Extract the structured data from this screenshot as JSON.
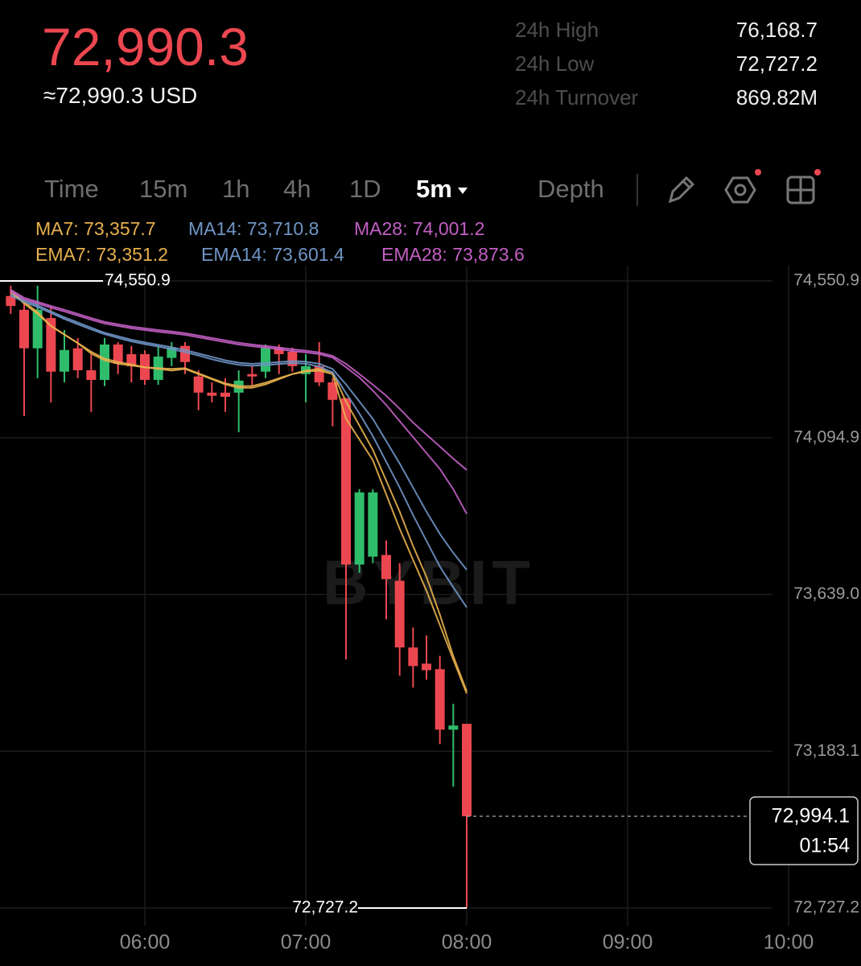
{
  "header": {
    "price": "72,990.3",
    "price_usd": "≈72,990.3 USD",
    "stats": [
      {
        "label": "24h High",
        "value": "76,168.7"
      },
      {
        "label": "24h Low",
        "value": "72,727.2"
      },
      {
        "label": "24h Turnover",
        "value": "869.82M"
      }
    ]
  },
  "toolbar": {
    "tabs": [
      "Time",
      "15m",
      "1h",
      "4h",
      "1D",
      "5m",
      "Depth"
    ],
    "active_tab": "5m"
  },
  "chart_data": {
    "type": "candlestick",
    "watermark": "BYBIT",
    "x": [
      "05:10",
      "05:15",
      "05:20",
      "05:25",
      "05:30",
      "05:35",
      "05:40",
      "05:45",
      "05:50",
      "05:55",
      "06:00",
      "06:05",
      "06:10",
      "06:15",
      "06:20",
      "06:25",
      "06:30",
      "06:35",
      "06:40",
      "06:45",
      "06:50",
      "06:55",
      "07:00",
      "07:05",
      "07:10",
      "07:15",
      "07:20",
      "07:25",
      "07:30",
      "07:35",
      "07:40",
      "07:45",
      "07:50",
      "07:55",
      "08:00"
    ],
    "open": [
      74507,
      74467,
      74355,
      74443,
      74287,
      74355,
      74291,
      74263,
      74366,
      74338,
      74338,
      74263,
      74327,
      74362,
      74273,
      74226,
      74226,
      74226,
      74280,
      74287,
      74357,
      74345,
      74280,
      74303,
      74256,
      74210,
      73726,
      73749,
      73754,
      73679,
      73485,
      73438,
      73422,
      73246,
      73263
    ],
    "high": [
      74537,
      74490,
      74537,
      74478,
      74408,
      74385,
      74338,
      74385,
      74373,
      74362,
      74349,
      74362,
      74373,
      74373,
      74291,
      74256,
      74268,
      74291,
      74303,
      74366,
      74366,
      74357,
      74338,
      74373,
      74268,
      74210,
      73945,
      73945,
      73796,
      73730,
      73543,
      73520,
      73461,
      73321,
      73263
    ],
    "low": [
      74455,
      74158,
      74268,
      74198,
      74256,
      74268,
      74170,
      74245,
      74280,
      74256,
      74249,
      74249,
      74303,
      74280,
      74175,
      74198,
      74170,
      74111,
      74245,
      74268,
      74280,
      74287,
      74198,
      74245,
      74128,
      73450,
      73702,
      73730,
      73567,
      73403,
      73368,
      73391,
      73204,
      73080,
      72727.2
    ],
    "close": [
      74478,
      74355,
      74467,
      74287,
      74350,
      74291,
      74263,
      74366,
      74310,
      74303,
      74263,
      74331,
      74357,
      74315,
      74226,
      74217,
      74214,
      74261,
      74273,
      74357,
      74338,
      74303,
      74303,
      74256,
      74205,
      73726,
      73936,
      73936,
      73684,
      73485,
      73431,
      73419,
      73246,
      73258,
      72994.1
    ],
    "up_color": "#2fbd6b",
    "down_color": "#ec4750",
    "series": [
      {
        "name": "MA7: 73,357.7",
        "color": "#e7b04d",
        "values": [
          74525,
          74490,
          74460,
          74420,
          74395,
          74370,
          74340,
          74320,
          74310,
          74305,
          74300,
          74295,
          74290,
          74295,
          74280,
          74265,
          74250,
          74240,
          74240,
          74250,
          74265,
          74280,
          74290,
          74295,
          74285,
          74200,
          74130,
          74060,
          73970,
          73880,
          73780,
          73690,
          73580,
          73460,
          73357.7
        ]
      },
      {
        "name": "MA14: 73,710.8",
        "color": "#6f95c6",
        "values": [
          74513,
          74495,
          74480,
          74462,
          74445,
          74430,
          74415,
          74400,
          74390,
          74380,
          74372,
          74365,
          74358,
          74350,
          74340,
          74330,
          74320,
          74313,
          74310,
          74312,
          74315,
          74318,
          74316,
          74310,
          74295,
          74250,
          74200,
          74150,
          74085,
          74020,
          73950,
          73880,
          73815,
          73760,
          73710.8
        ]
      },
      {
        "name": "MA28: 74,001.2",
        "color": "#c25fc4",
        "values": [
          74525,
          74502,
          74490,
          74478,
          74467,
          74455,
          74443,
          74432,
          74425,
          74418,
          74413,
          74408,
          74404,
          74399,
          74392,
          74385,
          74378,
          74371,
          74366,
          74362,
          74357,
          74352,
          74348,
          74343,
          74333,
          74310,
          74280,
          74249,
          74217,
          74179,
          74139,
          74104,
          74069,
          74034,
          74001.2
        ]
      },
      {
        "name": "EMA7: 73,351.2",
        "color": "#e7b04d",
        "values": [
          74520,
          74485,
          74455,
          74420,
          74395,
          74370,
          74345,
          74325,
          74315,
          74308,
          74300,
          74297,
          74295,
          74297,
          74282,
          74267,
          74253,
          74245,
          74245,
          74255,
          74268,
          74280,
          74287,
          74290,
          74280,
          74150,
          74090,
          74030,
          73930,
          73830,
          73740,
          73650,
          73550,
          73450,
          73351.2
        ]
      },
      {
        "name": "EMA14: 73,601.4",
        "color": "#6f95c6",
        "values": [
          74508,
          74490,
          74475,
          74458,
          74440,
          74425,
          74410,
          74396,
          74385,
          74375,
          74367,
          74360,
          74352,
          74344,
          74334,
          74323,
          74314,
          74307,
          74304,
          74306,
          74309,
          74312,
          74310,
          74302,
          74285,
          74225,
          74165,
          74100,
          74025,
          73950,
          73870,
          73795,
          73720,
          73660,
          73601.4
        ]
      },
      {
        "name": "EMA28: 73,873.6",
        "color": "#c25fc4",
        "values": [
          74520,
          74497,
          74485,
          74473,
          74462,
          74450,
          74438,
          74427,
          74420,
          74413,
          74408,
          74403,
          74399,
          74394,
          74387,
          74380,
          74373,
          74366,
          74361,
          74357,
          74352,
          74347,
          74343,
          74338,
          74328,
          74300,
          74270,
          74232,
          74190,
          74143,
          74097,
          74050,
          74004,
          73945,
          73873.6
        ]
      }
    ],
    "xlim": [
      "05:06",
      "10:27"
    ],
    "xticks": [
      "06:00",
      "07:00",
      "08:00",
      "09:00",
      "10:00"
    ],
    "ylim": [
      72675.8,
      74595.3
    ],
    "yticks": [
      {
        "value": 72727.2,
        "label": "72,727.2"
      },
      {
        "value": 73183.1,
        "label": "73,183.1"
      },
      {
        "value": 73639.0,
        "label": "73,639.0"
      },
      {
        "value": 74094.9,
        "label": "74,094.9"
      },
      {
        "value": 74550.9,
        "label": "74,550.9"
      }
    ],
    "grid": true,
    "max_label": {
      "value": 74550.9,
      "label": "74,550.9"
    },
    "min_label": {
      "value": 72727.2,
      "label": "72,727.2"
    },
    "last_price": {
      "value": 72994.1,
      "label": "72,994.1",
      "countdown": "01:54"
    }
  }
}
